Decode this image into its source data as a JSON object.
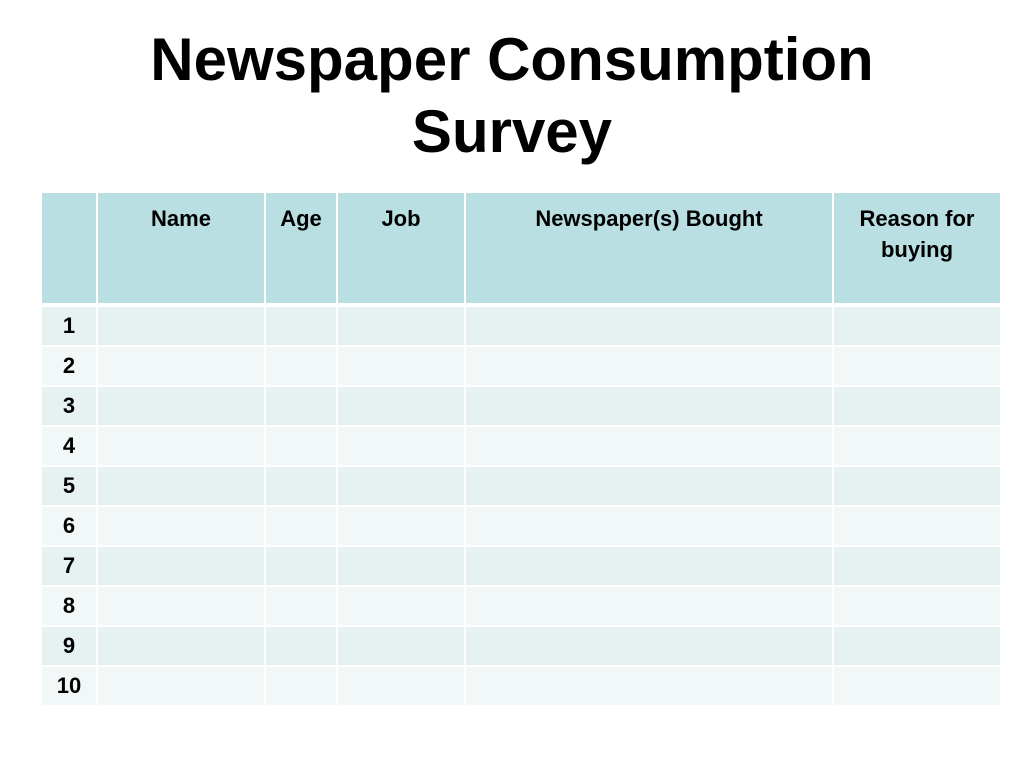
{
  "slide": {
    "title": "Newspaper Consumption\nSurvey"
  },
  "table": {
    "headers": [
      "",
      "Name",
      "Age",
      "Job",
      "Newspaper(s) Bought",
      "Reason for buying"
    ],
    "rows": [
      {
        "number": "1"
      },
      {
        "number": "2"
      },
      {
        "number": "3"
      },
      {
        "number": "4"
      },
      {
        "number": "5"
      },
      {
        "number": "6"
      },
      {
        "number": "7"
      },
      {
        "number": "8"
      },
      {
        "number": "9"
      },
      {
        "number": "10"
      }
    ]
  },
  "colors": {
    "header_fill": "#b9dfe3",
    "row_fill_odd": "#e6f1f2",
    "row_fill_even": "#f2f8f8"
  }
}
